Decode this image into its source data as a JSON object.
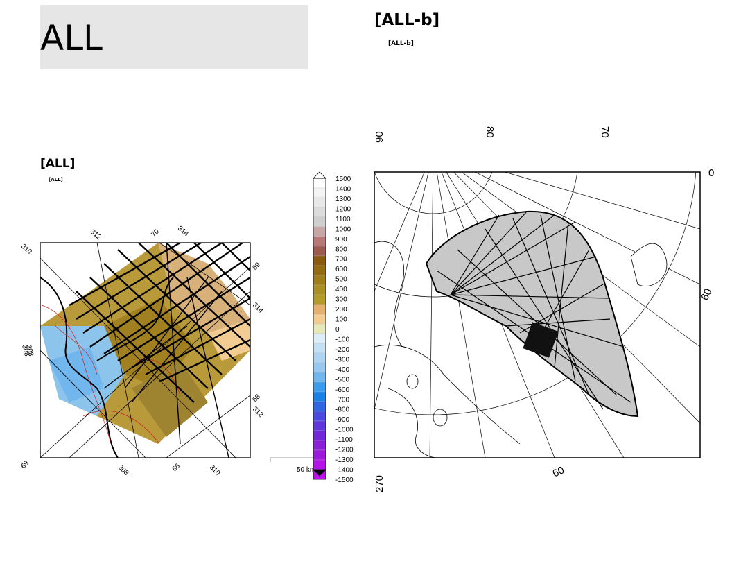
{
  "page_title": "ALL",
  "left_panel": {
    "title": "[ALL]",
    "subtitle": "[ALL]",
    "lon_labels": [
      "312",
      "314",
      "310",
      "308",
      "308",
      "308",
      "310",
      "312",
      "314"
    ],
    "lat_labels": [
      "70",
      "69",
      "68",
      "69",
      "68",
      "68"
    ],
    "scale_label": "50 km"
  },
  "right_panel": {
    "title": "[ALL-b]",
    "subtitle": "[ALL-b]",
    "top_labels": [
      "90",
      "80",
      "70"
    ],
    "right_labels": [
      "0",
      "60"
    ],
    "bottom_labels": [
      "270",
      "60"
    ]
  },
  "colorbar": {
    "ticks": [
      "1500",
      "1400",
      "1300",
      "1200",
      "1100",
      "1000",
      "900",
      "800",
      "700",
      "600",
      "500",
      "400",
      "300",
      "200",
      "100",
      "0",
      "-100",
      "-200",
      "-300",
      "-400",
      "-500",
      "-600",
      "-700",
      "-800",
      "-900",
      "-1000",
      "-1100",
      "-1200",
      "-1300",
      "-1400",
      "-1500"
    ],
    "colors": [
      "#ffffff",
      "#f4f4f4",
      "#e8e8e8",
      "#dcdcdc",
      "#cfcfcf",
      "#c8a6a6",
      "#b87878",
      "#9c5b4e",
      "#8a5a10",
      "#956b14",
      "#9f7d1a",
      "#aa8f24",
      "#b49c2c",
      "#e4b070",
      "#f2cc92",
      "#e6e8b8",
      "#dcecf8",
      "#c4e0f4",
      "#aed4f2",
      "#96c8f0",
      "#72b6ee",
      "#3a9cec",
      "#1a82e6",
      "#3066e4",
      "#4a4ae0",
      "#5e36dc",
      "#7228da",
      "#8a20d8",
      "#9c18dc",
      "#b412e8",
      "#c010f0"
    ]
  }
}
